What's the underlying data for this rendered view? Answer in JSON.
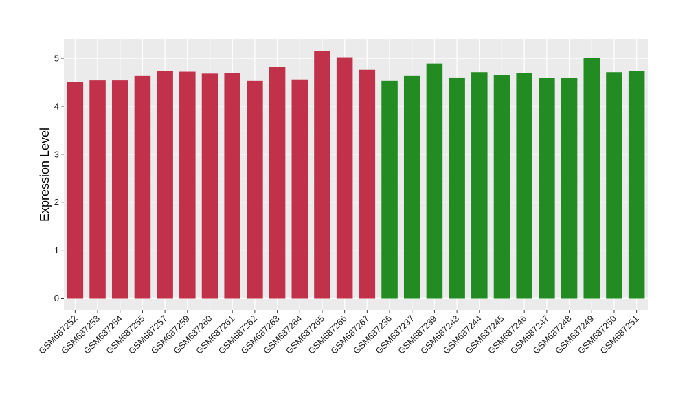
{
  "chart_data": {
    "type": "bar",
    "title": "",
    "xlabel": "",
    "ylabel": "Expression Level",
    "ylim": [
      -0.25,
      5.4
    ],
    "yticks": [
      0,
      1,
      2,
      3,
      4,
      5
    ],
    "grid": true,
    "legend": "none",
    "colors": {
      "group1": "#c1314a",
      "group2": "#228b22",
      "panel": "#ebebeb",
      "grid": "#ffffff"
    },
    "categories": [
      "GSM687252",
      "GSM687253",
      "GSM687254",
      "GSM687255",
      "GSM687257",
      "GSM687259",
      "GSM687260",
      "GSM687261",
      "GSM687262",
      "GSM687263",
      "GSM687264",
      "GSM687265",
      "GSM687266",
      "GSM687267",
      "GSM687236",
      "GSM687237",
      "GSM687239",
      "GSM687243",
      "GSM687244",
      "GSM687245",
      "GSM687246",
      "GSM687247",
      "GSM687248",
      "GSM687249",
      "GSM687250",
      "GSM687251"
    ],
    "values": [
      4.5,
      4.54,
      4.54,
      4.63,
      4.73,
      4.72,
      4.68,
      4.69,
      4.53,
      4.82,
      4.56,
      5.15,
      5.02,
      4.76,
      4.53,
      4.63,
      4.89,
      4.6,
      4.71,
      4.65,
      4.69,
      4.59,
      4.59,
      5.01,
      4.71,
      4.73
    ],
    "groups": [
      "group1",
      "group1",
      "group1",
      "group1",
      "group1",
      "group1",
      "group1",
      "group1",
      "group1",
      "group1",
      "group1",
      "group1",
      "group1",
      "group1",
      "group2",
      "group2",
      "group2",
      "group2",
      "group2",
      "group2",
      "group2",
      "group2",
      "group2",
      "group2",
      "group2",
      "group2"
    ]
  }
}
